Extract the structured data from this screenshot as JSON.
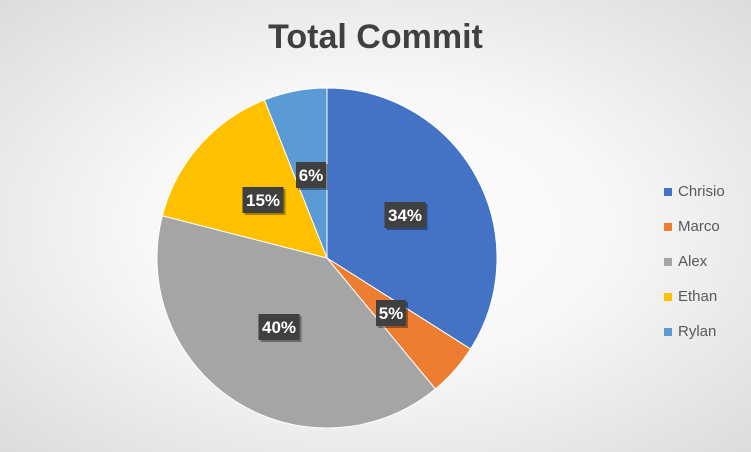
{
  "chart_data": {
    "type": "pie",
    "title": "Total Commit",
    "categories": [
      "Chrisio",
      "Marco",
      "Alex",
      "Ethan",
      "Rylan"
    ],
    "values": [
      34,
      5,
      40,
      15,
      6
    ],
    "data_labels": [
      "34%",
      "5%",
      "40%",
      "15%",
      "6%"
    ],
    "colors": [
      "#4472C4",
      "#ED7D31",
      "#A5A5A5",
      "#FFC000",
      "#5B9BD5"
    ],
    "legend_position": "right",
    "start_angle": "12 o'clock, clockwise"
  }
}
